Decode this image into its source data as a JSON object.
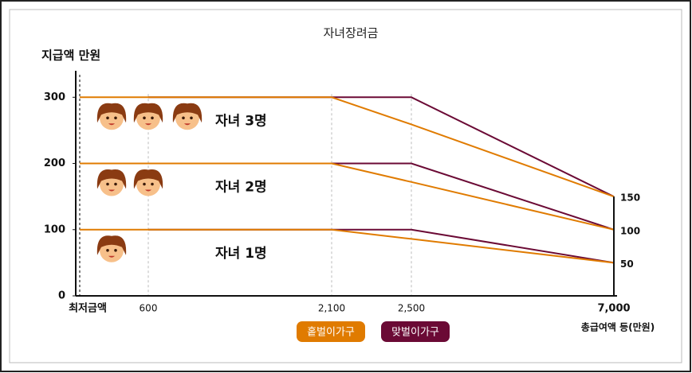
{
  "chart_data": {
    "type": "line",
    "title": "자녀장려금",
    "y_label": "지급액 만원",
    "x_label": "총급여액 등(만원)",
    "categories": [
      "최저금액",
      "600",
      "2,100",
      "2,500",
      "7,000"
    ],
    "ylim": [
      0,
      340
    ],
    "yticks": [
      0,
      100,
      200,
      300
    ],
    "legend": [
      {
        "name": "홑벌이가구",
        "color": "#e07b00"
      },
      {
        "name": "맞벌이가구",
        "color": "#6b0a35"
      }
    ],
    "groups": [
      {
        "label": "자녀 3명",
        "series": [
          {
            "values": [
              300,
              300,
              300,
              259,
              150
            ]
          },
          {
            "values": [
              null,
              300,
              300,
              300,
              150
            ]
          }
        ]
      },
      {
        "label": "자녀 2명",
        "series": [
          {
            "values": [
              200,
              200,
              200,
              172,
              100
            ]
          },
          {
            "values": [
              null,
              200,
              200,
              200,
              100
            ]
          }
        ]
      },
      {
        "label": "자녀 1명",
        "series": [
          {
            "values": [
              100,
              100,
              100,
              86,
              50
            ]
          },
          {
            "values": [
              null,
              100,
              100,
              100,
              50
            ]
          }
        ]
      }
    ]
  }
}
